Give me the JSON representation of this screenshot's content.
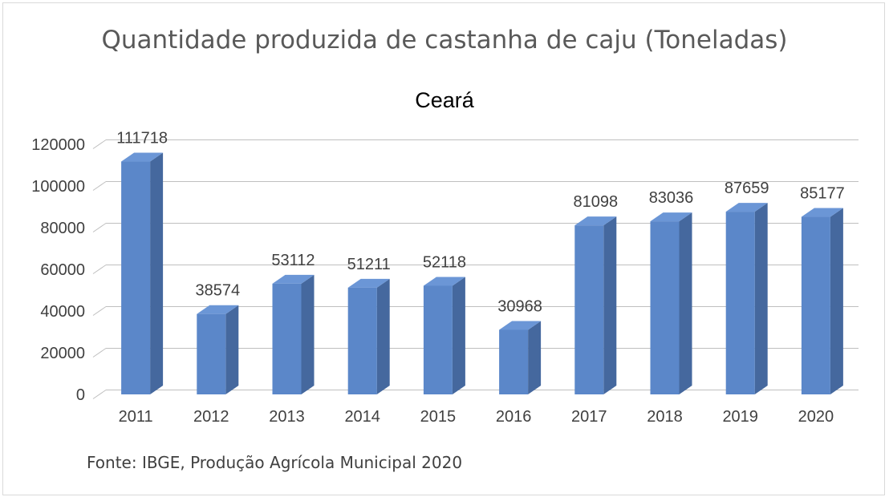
{
  "title": "Quantidade produzida de castanha de caju (Toneladas)",
  "subtitle": "Ceará",
  "source": "Fonte: IBGE, Produção Agrícola Municipal 2020",
  "colors": {
    "bar_front": "#5b87c9",
    "bar_side": "#45689e",
    "bar_top": "#6b96d6",
    "grid": "#bfbfbf"
  },
  "chart_data": {
    "type": "bar",
    "title": "Quantidade produzida de castanha de caju (Toneladas)",
    "subtitle": "Ceará",
    "categories": [
      "2011",
      "2012",
      "2013",
      "2014",
      "2015",
      "2016",
      "2017",
      "2018",
      "2019",
      "2020"
    ],
    "values": [
      111718,
      38574,
      53112,
      51211,
      52118,
      30968,
      81098,
      83036,
      87659,
      85177
    ],
    "ylim": [
      0,
      120000
    ],
    "yticks": [
      0,
      20000,
      40000,
      60000,
      80000,
      100000,
      120000
    ],
    "grid": true,
    "data_labels": true,
    "style": "3d-column"
  }
}
